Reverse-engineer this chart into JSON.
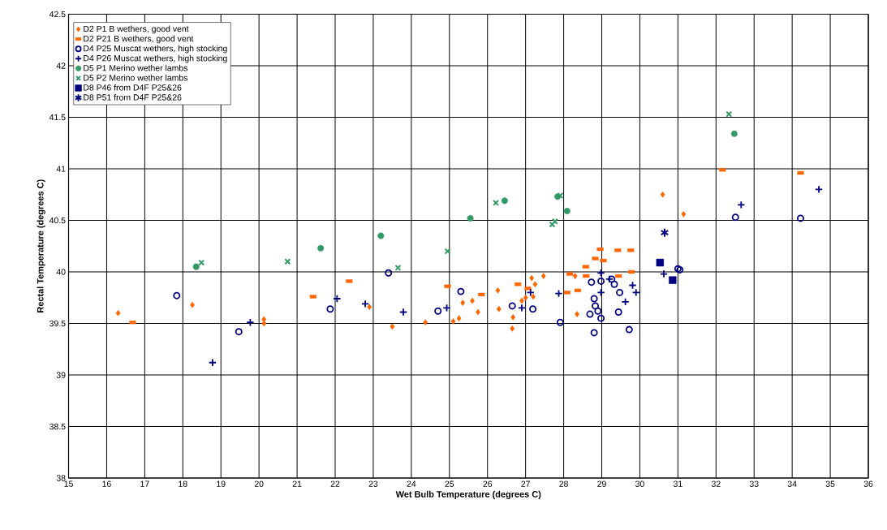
{
  "chart_data": {
    "type": "scatter",
    "xlabel": "Wet Bulb Temperature (degrees C)",
    "ylabel": "Rectal Temperature (degrees C)",
    "xlim": [
      15,
      36
    ],
    "ylim": [
      38,
      42.5
    ],
    "xticks": [
      15,
      16,
      17,
      18,
      19,
      20,
      21,
      22,
      23,
      24,
      25,
      26,
      27,
      28,
      29,
      30,
      31,
      32,
      33,
      34,
      35,
      36
    ],
    "yticks": [
      38,
      38.5,
      39,
      39.5,
      40,
      40.5,
      41,
      41.5,
      42,
      42.5
    ],
    "grid": true,
    "legend": "top left",
    "series": [
      {
        "name": "D2 P1 B wethers, good vent",
        "color": "#ff6600",
        "marker": "diamond",
        "x": [
          16.3,
          18.25,
          20.13,
          20.13,
          22.9,
          23.5,
          24.37,
          25.1,
          25.25,
          25.35,
          25.6,
          25.75,
          26.27,
          26.3,
          26.67,
          26.65,
          26.9,
          27.0,
          27.16,
          27.25,
          27.2,
          27.47,
          28.35,
          28.3,
          30.6,
          31.15
        ],
        "values": [
          39.6,
          39.68,
          39.54,
          39.5,
          39.66,
          39.47,
          39.51,
          39.52,
          39.55,
          39.7,
          39.72,
          39.61,
          39.82,
          39.64,
          39.56,
          39.45,
          39.72,
          39.75,
          39.94,
          39.88,
          39.76,
          39.96,
          39.59,
          39.96,
          40.75,
          40.56
        ]
      },
      {
        "name": "D2 P21 B wethers, good vent",
        "color": "#ff6600",
        "marker": "square",
        "x": [
          16.68,
          21.42,
          22.37,
          24.95,
          25.84,
          26.8,
          27.06,
          28.09,
          28.37,
          28.16,
          28.59,
          28.58,
          28.83,
          29.04,
          28.96,
          29.42,
          29.76,
          29.78,
          29.44,
          32.17,
          34.22
        ],
        "values": [
          39.51,
          39.76,
          39.91,
          39.86,
          39.78,
          39.88,
          39.84,
          39.8,
          39.82,
          39.98,
          39.96,
          40.05,
          40.13,
          40.11,
          40.22,
          40.21,
          40.21,
          40.0,
          39.96,
          40.99,
          40.96
        ]
      },
      {
        "name": "D4 P25 Muscat wethers, high stocking",
        "color": "#000080",
        "marker": "open circle",
        "x": [
          17.84,
          19.47,
          21.87,
          23.4,
          24.7,
          25.3,
          26.65,
          27.19,
          27.91,
          28.73,
          28.98,
          28.8,
          28.83,
          28.69,
          28.9,
          28.98,
          28.8,
          29.26,
          29.33,
          29.47,
          29.44,
          29.72,
          31.0,
          31.05,
          32.51,
          34.22
        ],
        "values": [
          39.77,
          39.42,
          39.64,
          39.99,
          39.62,
          39.81,
          39.67,
          39.64,
          39.51,
          39.9,
          39.91,
          39.74,
          39.67,
          39.59,
          39.62,
          39.55,
          39.41,
          39.93,
          39.88,
          39.8,
          39.61,
          39.44,
          40.03,
          40.02,
          40.53,
          40.52
        ]
      },
      {
        "name": "D4 P26 Muscat wethers, high stocking",
        "color": "#000080",
        "marker": "plus",
        "x": [
          18.78,
          19.77,
          22.05,
          22.79,
          23.79,
          24.93,
          26.9,
          27.13,
          27.87,
          28.98,
          29.2,
          28.98,
          29.62,
          29.81,
          29.9,
          30.63,
          32.66,
          34.7
        ],
        "values": [
          39.12,
          39.51,
          39.74,
          39.69,
          39.61,
          39.65,
          39.65,
          39.8,
          39.79,
          39.99,
          39.93,
          39.8,
          39.71,
          39.87,
          39.8,
          39.98,
          40.65,
          40.8
        ]
      },
      {
        "name": "D5 P1 Merino wether lambs",
        "color": "#339966",
        "marker": "circle",
        "x": [
          18.35,
          21.62,
          23.2,
          25.55,
          26.45,
          27.84,
          28.09,
          32.48
        ],
        "values": [
          40.05,
          40.23,
          40.35,
          40.52,
          40.69,
          40.73,
          40.59,
          41.34
        ]
      },
      {
        "name": "D5 P2 Merino wether lambs",
        "color": "#339966",
        "marker": "cross",
        "x": [
          18.49,
          20.75,
          23.65,
          24.95,
          26.22,
          27.91,
          27.77,
          27.7,
          32.34
        ],
        "values": [
          40.09,
          40.1,
          40.04,
          40.2,
          40.67,
          40.74,
          40.49,
          40.46,
          41.53
        ]
      },
      {
        "name": "D8 P46 from D4F P25&26",
        "color": "#000080",
        "marker": "square",
        "x": [
          30.53,
          30.86
        ],
        "values": [
          40.09,
          39.92
        ]
      },
      {
        "name": "D8 P51 from D4F P25&26",
        "color": "#000080",
        "marker": "cross",
        "x": [
          30.65
        ],
        "values": [
          40.38
        ]
      }
    ]
  }
}
